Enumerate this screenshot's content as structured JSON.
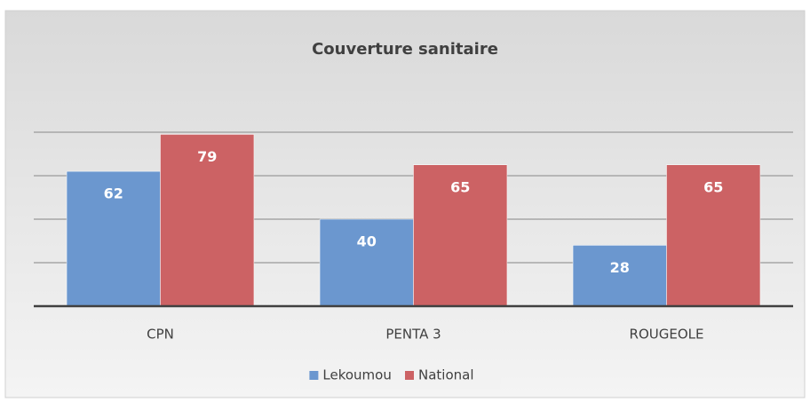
{
  "chart_data": {
    "type": "bar",
    "title": "Couverture sanitaire",
    "categories": [
      "CPN",
      "PENTA 3",
      "ROUGEOLE"
    ],
    "series": [
      {
        "name": "Lekoumou",
        "color": "#6b97cf",
        "values": [
          62,
          40,
          28
        ]
      },
      {
        "name": "National",
        "color": "#cc6264",
        "values": [
          79,
          65,
          65
        ]
      }
    ],
    "ylim": [
      0,
      100
    ],
    "yticks": [
      0,
      20,
      40,
      60,
      80
    ],
    "grid": true,
    "legend": "bottom"
  }
}
